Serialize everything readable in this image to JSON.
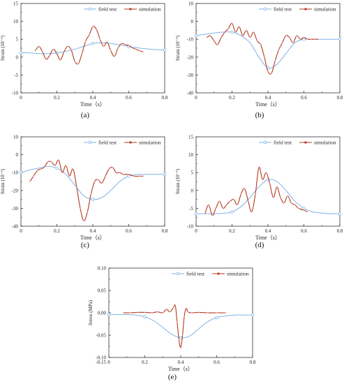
{
  "figure": {
    "panels": [
      "(a)",
      "(b)",
      "(c)",
      "(d)",
      "(e)"
    ]
  },
  "chart_data": [
    {
      "type": "line",
      "panel_label": "(a)",
      "xlabel": "Time（s）",
      "ylabel": "Strain (10⁻⁶)",
      "xlim": [
        0,
        0.8
      ],
      "ylim": [
        -10,
        15
      ],
      "xticks": [
        0,
        0.2,
        0.4,
        0.6,
        0.8
      ],
      "yticks": [
        -10,
        -5,
        0,
        5,
        10,
        15
      ],
      "legend": "top-right",
      "colors": {
        "field": "#7fb2e6",
        "sim": "#b23a1f"
      },
      "series": [
        {
          "name": "field test",
          "x": [
            0,
            0.05,
            0.1,
            0.15,
            0.2,
            0.25,
            0.3,
            0.35,
            0.4,
            0.45,
            0.5,
            0.55,
            0.6,
            0.65,
            0.7,
            0.75,
            0.8
          ],
          "y": [
            1.2,
            1.2,
            1.0,
            1.0,
            1.2,
            1.6,
            2.2,
            3.0,
            3.8,
            4.0,
            3.8,
            3.4,
            3.0,
            2.6,
            2.3,
            2.1,
            2.0
          ]
        },
        {
          "name": "simulation",
          "x": [
            0.08,
            0.1,
            0.12,
            0.14,
            0.16,
            0.18,
            0.2,
            0.22,
            0.24,
            0.26,
            0.28,
            0.3,
            0.32,
            0.34,
            0.36,
            0.38,
            0.4,
            0.42,
            0.44,
            0.46,
            0.48,
            0.5,
            0.52,
            0.54,
            0.56,
            0.58,
            0.6,
            0.62,
            0.64,
            0.66,
            0.68
          ],
          "y": [
            1.8,
            3.0,
            1.5,
            -0.6,
            0.5,
            2.2,
            1.0,
            -0.8,
            1.5,
            3.0,
            2.0,
            -1.2,
            -1.8,
            1.0,
            4.5,
            6.2,
            8.5,
            7.8,
            5.0,
            3.0,
            4.2,
            1.8,
            0.2,
            2.5,
            3.8,
            3.5,
            3.2,
            2.6,
            2.2,
            1.8,
            1.5
          ]
        }
      ]
    },
    {
      "type": "line",
      "panel_label": "(b)",
      "xlabel": "Time（s）",
      "ylabel": "Strain (10⁻⁶)",
      "xlim": [
        0,
        0.8
      ],
      "ylim": [
        -40,
        10
      ],
      "xticks": [
        0,
        0.2,
        0.4,
        0.6,
        0.8
      ],
      "yticks": [
        -40,
        -30,
        -20,
        -10,
        0,
        10
      ],
      "legend": "top-right",
      "colors": {
        "field": "#7fb2e6",
        "sim": "#b23a1f"
      },
      "series": [
        {
          "name": "field test",
          "x": [
            0,
            0.05,
            0.1,
            0.15,
            0.2,
            0.25,
            0.3,
            0.35,
            0.4,
            0.45,
            0.5,
            0.55,
            0.6,
            0.65,
            0.7,
            0.75,
            0.8
          ],
          "y": [
            -8,
            -7.2,
            -6.5,
            -6.0,
            -6.0,
            -8,
            -12,
            -20,
            -26,
            -24,
            -18,
            -12,
            -10,
            -10,
            -10,
            -10,
            -10
          ]
        },
        {
          "name": "simulation",
          "x": [
            0.06,
            0.08,
            0.1,
            0.12,
            0.14,
            0.16,
            0.18,
            0.2,
            0.22,
            0.24,
            0.26,
            0.28,
            0.3,
            0.32,
            0.34,
            0.36,
            0.38,
            0.4,
            0.42,
            0.44,
            0.46,
            0.48,
            0.5,
            0.52,
            0.54,
            0.56,
            0.58,
            0.6,
            0.62,
            0.64,
            0.66,
            0.68
          ],
          "y": [
            -9,
            -8,
            -11,
            -13,
            -9,
            -6,
            -4,
            -1,
            -6,
            -3,
            -8,
            -5,
            -9,
            -6,
            -11,
            -13,
            -20,
            -28,
            -29,
            -22,
            -16,
            -12,
            -8,
            -9,
            -12,
            -8,
            -10,
            -9,
            -10,
            -10,
            -10,
            -10
          ]
        }
      ]
    },
    {
      "type": "line",
      "panel_label": "(c)",
      "xlabel": "Time（s）",
      "ylabel": "Strain (10⁻⁶)",
      "xlim": [
        0,
        0.8
      ],
      "ylim": [
        -40,
        10
      ],
      "xticks": [
        0,
        0.2,
        0.4,
        0.6,
        0.8
      ],
      "yticks": [
        -40,
        -30,
        -20,
        -10,
        0,
        10
      ],
      "legend": "top-right",
      "colors": {
        "field": "#7fb2e6",
        "sim": "#b23a1f"
      },
      "series": [
        {
          "name": "field test",
          "x": [
            0,
            0.05,
            0.1,
            0.15,
            0.2,
            0.25,
            0.3,
            0.35,
            0.4,
            0.45,
            0.5,
            0.55,
            0.6,
            0.65,
            0.7,
            0.75,
            0.8
          ],
          "y": [
            -10,
            -8.5,
            -7.5,
            -6.5,
            -7.5,
            -11,
            -17,
            -23,
            -25,
            -24,
            -20,
            -15,
            -12,
            -11,
            -11,
            -11,
            -11
          ]
        },
        {
          "name": "simulation",
          "x": [
            0.05,
            0.07,
            0.09,
            0.11,
            0.13,
            0.15,
            0.17,
            0.19,
            0.21,
            0.23,
            0.25,
            0.27,
            0.29,
            0.31,
            0.33,
            0.35,
            0.37,
            0.39,
            0.41,
            0.43,
            0.45,
            0.47,
            0.49,
            0.51,
            0.53,
            0.55,
            0.57,
            0.6,
            0.63,
            0.66,
            0.68
          ],
          "y": [
            -15,
            -12,
            -9,
            -8,
            -7,
            -4,
            -4,
            -6,
            -3,
            -10,
            -6,
            -12,
            -8,
            -18,
            -30,
            -37,
            -32,
            -22,
            -15,
            -14,
            -16,
            -12,
            -8,
            -7,
            -10,
            -10,
            -11,
            -11,
            -12,
            -12,
            -12
          ]
        }
      ]
    },
    {
      "type": "line",
      "panel_label": "(d)",
      "xlabel": "Time（s）",
      "ylabel": "Strain (10⁻⁶)",
      "xlim": [
        0,
        0.8
      ],
      "ylim": [
        -10,
        15
      ],
      "xticks": [
        0,
        0.2,
        0.4,
        0.6,
        0.8
      ],
      "yticks": [
        -10,
        -5,
        0,
        5,
        10,
        15
      ],
      "legend": "top-right",
      "colors": {
        "field": "#7fb2e6",
        "sim": "#b23a1f"
      },
      "series": [
        {
          "name": "field test",
          "x": [
            0,
            0.05,
            0.1,
            0.15,
            0.2,
            0.25,
            0.3,
            0.35,
            0.4,
            0.45,
            0.5,
            0.55,
            0.6,
            0.65,
            0.7,
            0.75,
            0.8
          ],
          "y": [
            -6.5,
            -6.5,
            -6.5,
            -6.4,
            -6.0,
            -4.5,
            -2,
            1,
            3,
            2.5,
            0,
            -3,
            -5,
            -6,
            -6.3,
            -6.5,
            -6.5
          ]
        },
        {
          "name": "simulation",
          "x": [
            0.05,
            0.07,
            0.09,
            0.11,
            0.13,
            0.15,
            0.17,
            0.19,
            0.21,
            0.23,
            0.25,
            0.27,
            0.29,
            0.31,
            0.33,
            0.35,
            0.37,
            0.39,
            0.41,
            0.43,
            0.45,
            0.47,
            0.49,
            0.51,
            0.53,
            0.55,
            0.57,
            0.6,
            0.62
          ],
          "y": [
            -6.5,
            -4,
            -7,
            -5,
            -3,
            -5,
            -4,
            -3,
            -2.5,
            -4,
            -1,
            0.5,
            -3,
            -6,
            -1,
            6.5,
            3,
            5,
            2,
            -2,
            1,
            -2,
            -3.5,
            -1.5,
            -3.5,
            -4,
            -5,
            -5.5,
            -6
          ]
        }
      ]
    },
    {
      "type": "line",
      "panel_label": "(e)",
      "xlabel": "Time（s）",
      "ylabel": "Stress (MPa)",
      "xlim": [
        0,
        0.8
      ],
      "ylim": [
        -0.1,
        0.1
      ],
      "xticks": [
        0,
        0.2,
        0.4,
        0.6,
        0.8
      ],
      "yticks": [
        -0.1,
        -0.05,
        0,
        0.05,
        0.1
      ],
      "ytick_labels": [
        "-0.10",
        "-0.05",
        "0.00",
        "0.05",
        "0.10"
      ],
      "extra_y_tick_label": "-0.15",
      "legend": "top-right",
      "colors": {
        "field": "#7fb2e6",
        "sim": "#b23a1f"
      },
      "series": [
        {
          "name": "field test",
          "x": [
            0,
            0.05,
            0.1,
            0.15,
            0.2,
            0.25,
            0.3,
            0.35,
            0.4,
            0.45,
            0.5,
            0.55,
            0.6,
            0.65,
            0.7,
            0.75,
            0.8
          ],
          "y": [
            -0.004,
            -0.004,
            -0.004,
            -0.005,
            -0.009,
            -0.018,
            -0.033,
            -0.048,
            -0.056,
            -0.052,
            -0.036,
            -0.02,
            -0.011,
            -0.007,
            -0.005,
            -0.005,
            -0.005
          ]
        },
        {
          "name": "simulation",
          "x": [
            0.08,
            0.12,
            0.16,
            0.2,
            0.24,
            0.27,
            0.3,
            0.32,
            0.34,
            0.36,
            0.37,
            0.38,
            0.39,
            0.4,
            0.41,
            0.42,
            0.43,
            0.44,
            0.46,
            0.5,
            0.55,
            0.6,
            0.65
          ],
          "y": [
            0.0,
            0.0,
            0.001,
            0.001,
            0.0,
            0.002,
            0.0,
            0.008,
            0.002,
            0.012,
            0.016,
            -0.02,
            -0.06,
            -0.078,
            -0.05,
            -0.008,
            0.01,
            0.002,
            0.0,
            0.001,
            0.0,
            0.0,
            0.0
          ]
        }
      ]
    }
  ]
}
